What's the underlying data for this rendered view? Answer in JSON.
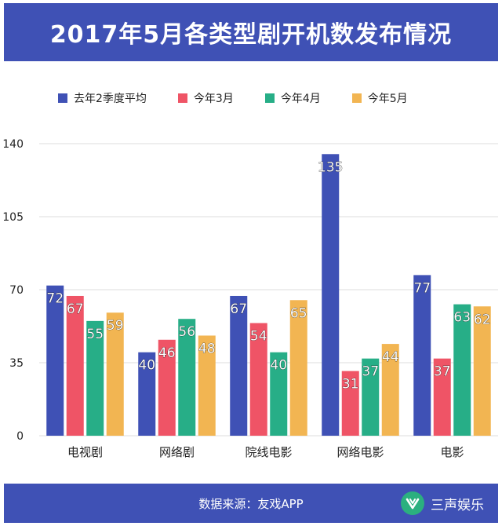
{
  "header": {
    "title": "2017年5月各类型剧开机数发布情况"
  },
  "footer": {
    "source": "数据来源：友戏APP",
    "brand": "三声娱乐",
    "brand_icon": "leaf-v-logo-icon"
  },
  "colors": {
    "header_bg": "#3f51b5",
    "series": [
      "#3f51b5",
      "#ef5466",
      "#27ae87",
      "#f2b552"
    ],
    "grid": "#dddddd"
  },
  "chart_data": {
    "type": "bar",
    "title": "2017年5月各类型剧开机数发布情况",
    "xlabel": "",
    "ylabel": "",
    "categories": [
      "电视剧",
      "网络剧",
      "院线电影",
      "网络电影",
      "电影"
    ],
    "series": [
      {
        "name": "去年2季度平均",
        "values": [
          72,
          40,
          67,
          135,
          77
        ]
      },
      {
        "name": "今年3月",
        "values": [
          67,
          46,
          54,
          31,
          37
        ]
      },
      {
        "name": "今年4月",
        "values": [
          55,
          56,
          40,
          37,
          63
        ]
      },
      {
        "name": "今年5月",
        "values": [
          59,
          48,
          65,
          44,
          62
        ]
      }
    ],
    "ylim": [
      0,
      140
    ],
    "yticks": [
      0,
      35,
      70,
      105,
      140
    ],
    "grid": true,
    "legend_position": "top"
  }
}
